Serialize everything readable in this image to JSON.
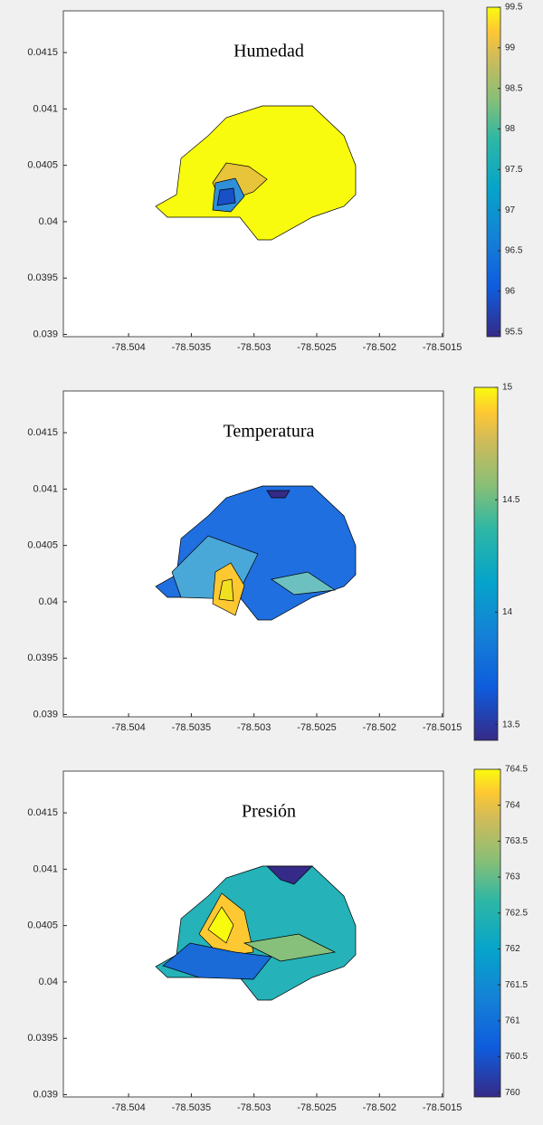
{
  "chart_data": [
    {
      "type": "contour",
      "title": "Humedad",
      "xlim": [
        -78.50452,
        -78.50149
      ],
      "xticks": [
        -78.504,
        -78.5035,
        -78.503,
        -78.5025,
        -78.502,
        -78.5015
      ],
      "ylim": [
        0.03898,
        0.04187
      ],
      "yticks": [
        0.039,
        0.0395,
        0.04,
        0.0405,
        0.041,
        0.0415
      ],
      "clim": [
        95.44,
        99.5
      ],
      "cticks": [
        95.5,
        96,
        96.5,
        97,
        97.5,
        98,
        98.5,
        99,
        99.5
      ]
    },
    {
      "type": "contour",
      "title": "Temperatura",
      "xlim": [
        -78.50452,
        -78.50149
      ],
      "xticks": [
        -78.504,
        -78.5035,
        -78.503,
        -78.5025,
        -78.502,
        -78.5015
      ],
      "ylim": [
        0.03898,
        0.04187
      ],
      "yticks": [
        0.039,
        0.0395,
        0.04,
        0.0405,
        0.041,
        0.0415
      ],
      "clim": [
        13.43,
        15
      ],
      "cticks": [
        13.5,
        14,
        14.5,
        15
      ]
    },
    {
      "type": "contour",
      "title": "Presión",
      "xlim": [
        -78.50452,
        -78.50149
      ],
      "xticks": [
        -78.504,
        -78.5035,
        -78.503,
        -78.5025,
        -78.502,
        -78.5015
      ],
      "ylim": [
        0.03898,
        0.04187
      ],
      "yticks": [
        0.039,
        0.0395,
        0.04,
        0.0405,
        0.041,
        0.0415
      ],
      "clim": [
        759.94,
        764.5
      ],
      "cticks": [
        760,
        760.5,
        761,
        761.5,
        762,
        762.5,
        763,
        763.5,
        764,
        764.5
      ]
    }
  ]
}
